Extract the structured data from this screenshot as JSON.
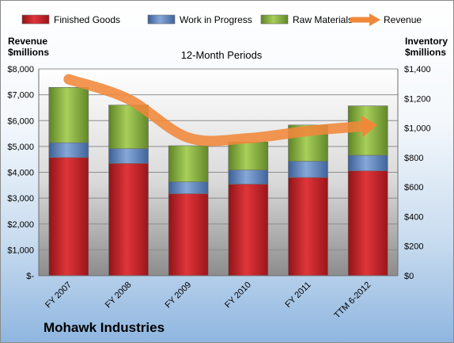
{
  "chart_data": {
    "type": "bar",
    "stacked": true,
    "subtitle": "12-Month Periods",
    "company": "Mohawk Industries",
    "categories": [
      "FY 2007",
      "FY 2008",
      "FY 2009",
      "FY 2010",
      "FY 2011",
      "TTM 6-2012"
    ],
    "series": [
      {
        "name": "Finished Goods",
        "axis": "right",
        "color": "#c0262b",
        "values": [
          800,
          760,
          555,
          620,
          665,
          710
        ]
      },
      {
        "name": "Work in Progress",
        "axis": "right",
        "color": "#5f86c0",
        "values": [
          100,
          100,
          80,
          95,
          110,
          105
        ]
      },
      {
        "name": "Raw Materials",
        "axis": "right",
        "color": "#8ab23e",
        "values": [
          375,
          295,
          245,
          190,
          245,
          335
        ]
      },
      {
        "name": "Revenue",
        "axis": "left",
        "type": "line",
        "color": "#f0883a",
        "values": [
          7600,
          6830,
          5340,
          5320,
          5600,
          5800
        ]
      }
    ],
    "left_axis": {
      "title_line1": "Revenue",
      "title_line2": "$millions",
      "ylim": [
        0,
        8000
      ],
      "ticks": [
        0,
        1000,
        2000,
        3000,
        4000,
        5000,
        6000,
        7000,
        8000
      ],
      "tick_labels": [
        "$-",
        "$1,000",
        "$2,000",
        "$3,000",
        "$4,000",
        "$5,000",
        "$6,000",
        "$7,000",
        "$8,000"
      ]
    },
    "right_axis": {
      "title_line1": "Inventory",
      "title_line2": "$millions",
      "ylim": [
        0,
        1400
      ],
      "ticks": [
        0,
        200,
        400,
        600,
        800,
        1000,
        1200,
        1400
      ],
      "tick_labels": [
        "$0",
        "$200",
        "$400",
        "$600",
        "$800",
        "$1,000",
        "$1,200",
        "$1,400"
      ]
    },
    "grid": true,
    "legend": "top"
  }
}
